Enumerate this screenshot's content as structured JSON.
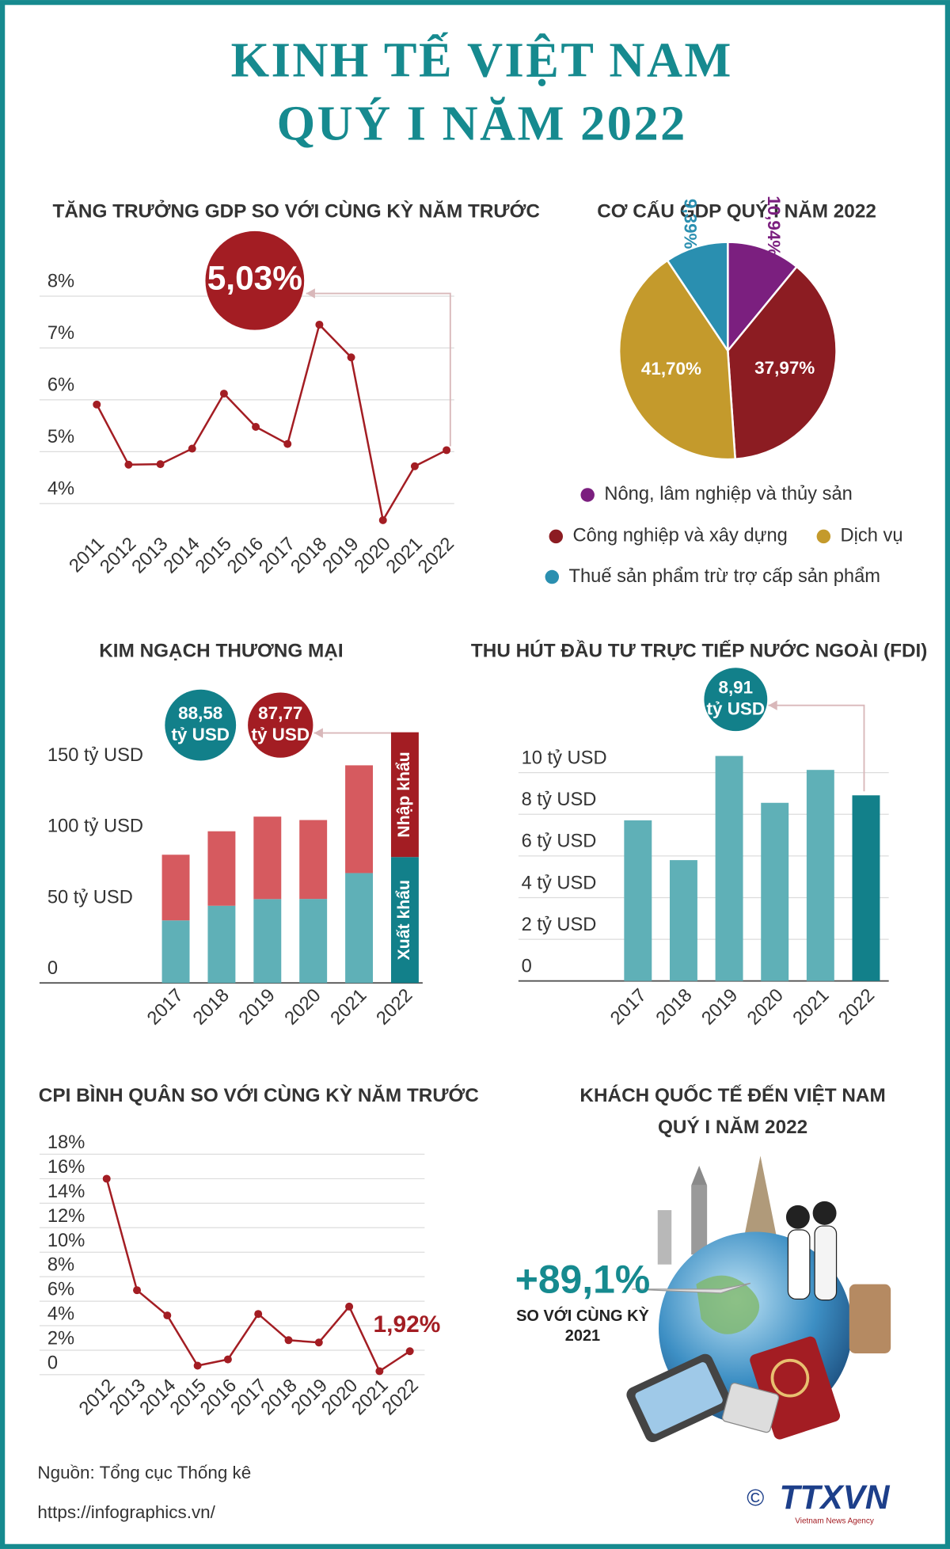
{
  "header": {
    "title": [
      "KINH TẾ VIỆT NAM",
      "QUÝ I NĂM 2022"
    ]
  },
  "chart_data": [
    {
      "type": "line",
      "title": "TĂNG TRƯỞNG GDP SO VỚI CÙNG KỲ NĂM TRƯỚC",
      "categories": [
        "2011",
        "2012",
        "2013",
        "2014",
        "2015",
        "2016",
        "2017",
        "2018",
        "2019",
        "2020",
        "2021",
        "2022"
      ],
      "values": [
        5.91,
        4.75,
        4.76,
        5.06,
        6.12,
        5.48,
        5.15,
        7.45,
        6.82,
        3.68,
        4.72,
        5.03
      ],
      "value_labels": [
        null,
        null,
        null,
        null,
        null,
        null,
        null,
        null,
        null,
        null,
        null,
        "5,03%"
      ],
      "color": "#a31d23",
      "ylim": [
        3.5,
        8.3
      ],
      "yticks": [
        {
          "value": 4,
          "label": "4%"
        },
        {
          "value": 5,
          "label": "5%"
        },
        {
          "value": 6,
          "label": "6%"
        },
        {
          "value": 7,
          "label": "7%"
        },
        {
          "value": 8,
          "label": "8%"
        }
      ],
      "grid": true
    },
    {
      "type": "pie",
      "title": "CƠ CẤU GDP QUÝ I NĂM 2022",
      "categories": [
        "Nông, lâm nghiệp và thủy sản",
        "Công nghiệp và xây dựng",
        "Dịch vụ",
        "Thuế sản phẩm trừ trợ cấp sản phẩm"
      ],
      "values": [
        10.94,
        37.97,
        41.7,
        9.39
      ],
      "value_labels": [
        "10,94%",
        "37,97%",
        "41,70%",
        "9,39%"
      ],
      "colors": [
        "#7b1f7f",
        "#8c1c22",
        "#c49a2c",
        "#2a8fb0"
      ]
    },
    {
      "type": "bar",
      "title": "KIM NGẠCH THƯƠNG MẠI",
      "categories": [
        "2017",
        "2018",
        "2019",
        "2020",
        "2021",
        "2022"
      ],
      "series": [
        {
          "name": "Xuất khẩu",
          "values": [
            44.0,
            54.3,
            59.0,
            59.1,
            77.3,
            88.58
          ],
          "colors": [
            "#5fb0b7",
            "#5fb0b7",
            "#5fb0b7",
            "#5fb0b7",
            "#5fb0b7",
            "#12808a"
          ],
          "value_labels": [
            null,
            null,
            null,
            null,
            null,
            "88,58 tỷ USD"
          ]
        },
        {
          "name": "Nhập khẩu",
          "values": [
            46.2,
            52.4,
            58.0,
            55.5,
            75.8,
            87.77
          ],
          "colors": [
            "#d65a5f",
            "#d65a5f",
            "#d65a5f",
            "#d65a5f",
            "#d65a5f",
            "#a31d23"
          ],
          "value_labels": [
            null,
            null,
            null,
            null,
            null,
            "87,77 tỷ USD"
          ]
        }
      ],
      "ylim": [
        0,
        180
      ],
      "yticks": [
        0,
        {
          "value": 50,
          "label": "50 tỷ USD"
        },
        {
          "value": 100,
          "label": "100 tỷ USD"
        },
        {
          "value": 150,
          "label": "150 tỷ USD"
        }
      ],
      "grid": false
    },
    {
      "type": "bar",
      "title": "THU HÚT ĐẦU TƯ TRỰC TIẾP NƯỚC NGOÀI (FDI)",
      "categories": [
        "2017",
        "2018",
        "2019",
        "2020",
        "2021",
        "2022"
      ],
      "values": [
        7.71,
        5.8,
        10.8,
        8.55,
        10.13,
        8.91
      ],
      "colors": [
        "#5fb0b7",
        "#5fb0b7",
        "#5fb0b7",
        "#5fb0b7",
        "#5fb0b7",
        "#12808a"
      ],
      "value_labels": [
        null,
        null,
        null,
        null,
        null,
        "8,91 tỷ USD"
      ],
      "ylim": [
        0,
        11
      ],
      "yticks": [
        0,
        {
          "value": 2,
          "label": "2 tỷ USD"
        },
        {
          "value": 4,
          "label": "4 tỷ USD"
        },
        {
          "value": 6,
          "label": "6 tỷ USD"
        },
        {
          "value": 8,
          "label": "8 tỷ USD"
        },
        {
          "value": 10,
          "label": "10 tỷ USD"
        }
      ],
      "grid": true
    },
    {
      "type": "line",
      "title": "CPI BÌNH QUÂN SO VỚI CÙNG KỲ NĂM TRƯỚC",
      "categories": [
        "2012",
        "2013",
        "2014",
        "2015",
        "2016",
        "2017",
        "2018",
        "2019",
        "2020",
        "2021",
        "2022"
      ],
      "values": [
        16.0,
        6.9,
        4.84,
        0.74,
        1.25,
        4.96,
        2.82,
        2.63,
        5.56,
        0.29,
        1.92
      ],
      "value_labels": [
        null,
        null,
        null,
        null,
        null,
        null,
        null,
        null,
        null,
        null,
        "1,92%"
      ],
      "color": "#a31d23",
      "ylim": [
        -1,
        19
      ],
      "yticks": [
        0,
        {
          "value": 2,
          "label": "2%"
        },
        {
          "value": 4,
          "label": "4%"
        },
        {
          "value": 6,
          "label": "6%"
        },
        {
          "value": 8,
          "label": "8%"
        },
        {
          "value": 10,
          "label": "10%"
        },
        {
          "value": 12,
          "label": "12%"
        },
        {
          "value": 14,
          "label": "14%"
        },
        {
          "value": 16,
          "label": "16%"
        },
        {
          "value": 18,
          "label": "18%"
        }
      ],
      "grid": true
    }
  ],
  "tourism": {
    "title": [
      "KHÁCH QUỐC TẾ ĐẾN VIỆT NAM",
      "QUÝ I NĂM 2022"
    ],
    "value": "+89,1%",
    "note": [
      "SO VỚI CÙNG KỲ",
      "2021"
    ]
  },
  "footer": {
    "source": "Nguồn: Tổng cục Thống kê",
    "url": "https://infographics.vn/",
    "copyright": "©",
    "logo": "TTXVN",
    "agency": "Vietnam News Agency"
  }
}
